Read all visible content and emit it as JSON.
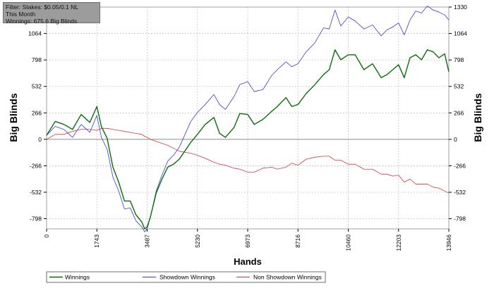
{
  "info": {
    "filter": "Filter: Stakes: $0.05/0.1 NL",
    "period": "This Month",
    "winnings": "Winnings: 675.6 Big Blinds"
  },
  "chart_data": {
    "type": "line",
    "xlabel": "Hands",
    "ylabel_left": "Big Blinds",
    "ylabel_right": "Big Blinds",
    "xlim": [
      0,
      13946
    ],
    "ylim": [
      -900,
      1330
    ],
    "x_ticks": [
      0,
      1743,
      3487,
      5230,
      6973,
      8716,
      10460,
      12203,
      13946
    ],
    "y_ticks": [
      -798,
      -532,
      -266,
      0,
      266,
      532,
      798,
      1064
    ],
    "y_ticks_right": [
      -798,
      -532,
      -266,
      0,
      266,
      532,
      798,
      1064,
      1330
    ],
    "grid": true,
    "legend_position": "bottom",
    "colors": {
      "winnings": "#0a6e0a",
      "showdown": "#3a3ad8",
      "non_showdown": "#d03a3a",
      "zero_line": "#8a8a8a",
      "grid": "#b4b4b4",
      "plot_border": "#a0a0a0"
    },
    "series": [
      {
        "name": "Winnings",
        "color": "#0a6e0a",
        "x": [
          0,
          300,
          600,
          900,
          1200,
          1500,
          1743,
          1900,
          2100,
          2300,
          2500,
          2700,
          2900,
          3100,
          3300,
          3400,
          3487,
          3600,
          3800,
          4000,
          4200,
          4400,
          4600,
          5000,
          5230,
          5500,
          5800,
          6000,
          6200,
          6500,
          6700,
          6973,
          7200,
          7500,
          7800,
          8000,
          8300,
          8500,
          8716,
          9000,
          9300,
          9600,
          9800,
          10000,
          10200,
          10460,
          10700,
          11000,
          11300,
          11600,
          11800,
          12000,
          12203,
          12400,
          12600,
          12800,
          13000,
          13200,
          13400,
          13600,
          13800,
          13946
        ],
        "values": [
          40,
          180,
          150,
          100,
          250,
          170,
          330,
          130,
          10,
          -280,
          -430,
          -620,
          -620,
          -760,
          -830,
          -900,
          -880,
          -780,
          -540,
          -400,
          -280,
          -250,
          -200,
          -30,
          50,
          150,
          220,
          60,
          20,
          120,
          260,
          250,
          150,
          200,
          280,
          330,
          420,
          330,
          350,
          460,
          550,
          650,
          700,
          900,
          800,
          850,
          850,
          700,
          760,
          620,
          650,
          700,
          750,
          620,
          820,
          850,
          800,
          900,
          880,
          820,
          860,
          680
        ]
      },
      {
        "name": "Showdown Winnings",
        "color": "#3a3ad8",
        "x": [
          0,
          300,
          600,
          900,
          1200,
          1500,
          1743,
          1900,
          2100,
          2300,
          2500,
          2700,
          2900,
          3100,
          3300,
          3400,
          3487,
          3600,
          3800,
          4000,
          4200,
          4400,
          4600,
          5000,
          5230,
          5500,
          5800,
          6000,
          6200,
          6500,
          6700,
          6973,
          7200,
          7500,
          7800,
          8000,
          8300,
          8500,
          8716,
          9000,
          9300,
          9600,
          9800,
          10000,
          10200,
          10460,
          10700,
          11000,
          11300,
          11600,
          11800,
          12000,
          12203,
          12400,
          12600,
          12800,
          13000,
          13200,
          13400,
          13600,
          13800,
          13946
        ],
        "values": [
          40,
          130,
          100,
          20,
          150,
          70,
          240,
          20,
          -100,
          -380,
          -520,
          -700,
          -690,
          -820,
          -880,
          -930,
          -900,
          -780,
          -520,
          -360,
          -220,
          -160,
          -80,
          180,
          270,
          350,
          450,
          350,
          300,
          430,
          550,
          580,
          480,
          500,
          640,
          700,
          780,
          730,
          760,
          880,
          970,
          1120,
          1110,
          1300,
          1140,
          1230,
          1190,
          1110,
          1150,
          1040,
          1100,
          1130,
          1170,
          1050,
          1200,
          1290,
          1270,
          1340,
          1300,
          1280,
          1250,
          1200
        ]
      },
      {
        "name": "Non Showdown Winnings",
        "color": "#d03a3a",
        "x": [
          0,
          300,
          600,
          900,
          1200,
          1500,
          1743,
          1900,
          2100,
          2300,
          2500,
          2700,
          2900,
          3100,
          3300,
          3400,
          3487,
          3600,
          3800,
          4000,
          4200,
          4400,
          4600,
          5000,
          5230,
          5500,
          5800,
          6000,
          6200,
          6500,
          6700,
          6973,
          7200,
          7500,
          7800,
          8000,
          8300,
          8500,
          8716,
          9000,
          9300,
          9600,
          9800,
          10000,
          10200,
          10460,
          10700,
          11000,
          11300,
          11600,
          11800,
          12000,
          12203,
          12400,
          12600,
          12800,
          13000,
          13200,
          13400,
          13600,
          13800,
          13946
        ],
        "values": [
          0,
          50,
          50,
          80,
          100,
          100,
          90,
          110,
          110,
          100,
          90,
          80,
          70,
          60,
          50,
          30,
          20,
          0,
          -20,
          -40,
          -60,
          -90,
          -120,
          -140,
          -160,
          -190,
          -230,
          -250,
          -260,
          -290,
          -300,
          -330,
          -330,
          -290,
          -280,
          -300,
          -280,
          -240,
          -260,
          -200,
          -180,
          -170,
          -170,
          -210,
          -210,
          -250,
          -250,
          -300,
          -300,
          -350,
          -350,
          -370,
          -360,
          -430,
          -400,
          -450,
          -450,
          -450,
          -480,
          -490,
          -520,
          -540
        ]
      }
    ]
  },
  "legend": [
    "Winnings",
    "Showdown Winnings",
    "Non Showdown Winnings"
  ]
}
